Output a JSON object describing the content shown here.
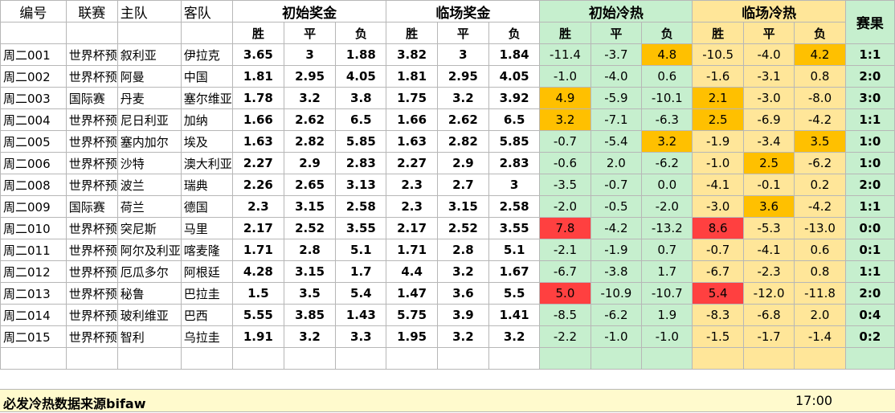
{
  "headers": {
    "id": "编号",
    "league": "联赛",
    "home": "主队",
    "away": "客队",
    "init_odds": "初始奖金",
    "live_odds": "临场奖金",
    "init_heat": "初始冷热",
    "live_heat": "临场冷热",
    "result": "赛果",
    "win": "胜",
    "draw": "平",
    "lose": "负"
  },
  "rows": [
    {
      "id": "周二001",
      "league": "世界杯预",
      "home": "叙利亚",
      "away": "伊拉克",
      "io": [
        "3.65",
        "3",
        "1.88"
      ],
      "lo": [
        "3.82",
        "3",
        "1.84"
      ],
      "ih": [
        "-11.4",
        "-3.7",
        "4.8"
      ],
      "lh": [
        "-10.5",
        "-4.0",
        "4.2"
      ],
      "res": "1:1",
      "ihc": [
        "",
        "",
        "o"
      ],
      "lhc": [
        "",
        "",
        "o"
      ]
    },
    {
      "id": "周二002",
      "league": "世界杯预",
      "home": "阿曼",
      "away": "中国",
      "io": [
        "1.81",
        "2.95",
        "4.05"
      ],
      "lo": [
        "1.81",
        "2.95",
        "4.05"
      ],
      "ih": [
        "-1.0",
        "-4.0",
        "0.6"
      ],
      "lh": [
        "-1.6",
        "-3.1",
        "0.8"
      ],
      "res": "2:0",
      "ihc": [
        "",
        "",
        ""
      ],
      "lhc": [
        "",
        "",
        ""
      ]
    },
    {
      "id": "周二003",
      "league": "国际赛",
      "home": "丹麦",
      "away": "塞尔维亚",
      "io": [
        "1.78",
        "3.2",
        "3.8"
      ],
      "lo": [
        "1.75",
        "3.2",
        "3.92"
      ],
      "ih": [
        "4.9",
        "-5.9",
        "-10.1"
      ],
      "lh": [
        "2.1",
        "-3.0",
        "-8.0"
      ],
      "res": "3:0",
      "ihc": [
        "o",
        "",
        ""
      ],
      "lhc": [
        "o",
        "",
        ""
      ]
    },
    {
      "id": "周二004",
      "league": "世界杯预",
      "home": "尼日利亚",
      "away": "加纳",
      "io": [
        "1.66",
        "2.62",
        "6.5"
      ],
      "lo": [
        "1.66",
        "2.62",
        "6.5"
      ],
      "ih": [
        "3.2",
        "-7.1",
        "-6.3"
      ],
      "lh": [
        "2.5",
        "-6.9",
        "-4.2"
      ],
      "res": "1:1",
      "ihc": [
        "o",
        "",
        ""
      ],
      "lhc": [
        "o",
        "",
        ""
      ]
    },
    {
      "id": "周二005",
      "league": "世界杯预",
      "home": "塞内加尔",
      "away": "埃及",
      "io": [
        "1.63",
        "2.82",
        "5.85"
      ],
      "lo": [
        "1.63",
        "2.82",
        "5.85"
      ],
      "ih": [
        "-0.7",
        "-5.4",
        "3.2"
      ],
      "lh": [
        "-1.9",
        "-3.4",
        "3.5"
      ],
      "res": "1:0",
      "ihc": [
        "",
        "",
        "o"
      ],
      "lhc": [
        "",
        "",
        "o"
      ]
    },
    {
      "id": "周二006",
      "league": "世界杯预",
      "home": "沙特",
      "away": "澳大利亚",
      "io": [
        "2.27",
        "2.9",
        "2.83"
      ],
      "lo": [
        "2.27",
        "2.9",
        "2.83"
      ],
      "ih": [
        "-0.6",
        "2.0",
        "-6.2"
      ],
      "lh": [
        "-1.0",
        "2.5",
        "-6.2"
      ],
      "res": "1:0",
      "ihc": [
        "",
        "",
        ""
      ],
      "lhc": [
        "",
        "o",
        ""
      ]
    },
    {
      "id": "周二008",
      "league": "世界杯预",
      "home": "波兰",
      "away": "瑞典",
      "io": [
        "2.26",
        "2.65",
        "3.13"
      ],
      "lo": [
        "2.3",
        "2.7",
        "3"
      ],
      "ih": [
        "-3.5",
        "-0.7",
        "0.0"
      ],
      "lh": [
        "-4.1",
        "-0.1",
        "0.2"
      ],
      "res": "2:0",
      "ihc": [
        "",
        "",
        ""
      ],
      "lhc": [
        "",
        "",
        ""
      ]
    },
    {
      "id": "周二009",
      "league": "国际赛",
      "home": "荷兰",
      "away": "德国",
      "io": [
        "2.3",
        "3.15",
        "2.58"
      ],
      "lo": [
        "2.3",
        "3.15",
        "2.58"
      ],
      "ih": [
        "-2.0",
        "-0.5",
        "-2.0"
      ],
      "lh": [
        "-3.0",
        "3.6",
        "-4.2"
      ],
      "res": "1:1",
      "ihc": [
        "",
        "",
        ""
      ],
      "lhc": [
        "",
        "o",
        ""
      ]
    },
    {
      "id": "周二010",
      "league": "世界杯预",
      "home": "突尼斯",
      "away": "马里",
      "io": [
        "2.17",
        "2.52",
        "3.55"
      ],
      "lo": [
        "2.17",
        "2.52",
        "3.55"
      ],
      "ih": [
        "7.8",
        "-4.2",
        "-13.2"
      ],
      "lh": [
        "8.6",
        "-5.3",
        "-13.0"
      ],
      "res": "0:0",
      "ihc": [
        "r",
        "",
        ""
      ],
      "lhc": [
        "r",
        "",
        ""
      ]
    },
    {
      "id": "周二011",
      "league": "世界杯预",
      "home": "阿尔及利亚",
      "away": "喀麦隆",
      "io": [
        "1.71",
        "2.8",
        "5.1"
      ],
      "lo": [
        "1.71",
        "2.8",
        "5.1"
      ],
      "ih": [
        "-2.1",
        "-1.9",
        "0.7"
      ],
      "lh": [
        "-0.7",
        "-4.1",
        "0.6"
      ],
      "res": "0:1",
      "ihc": [
        "",
        "",
        ""
      ],
      "lhc": [
        "",
        "",
        ""
      ]
    },
    {
      "id": "周二012",
      "league": "世界杯预",
      "home": "厄瓜多尔",
      "away": "阿根廷",
      "io": [
        "4.28",
        "3.15",
        "1.7"
      ],
      "lo": [
        "4.4",
        "3.2",
        "1.67"
      ],
      "ih": [
        "-6.7",
        "-3.8",
        "1.7"
      ],
      "lh": [
        "-6.7",
        "-2.3",
        "0.8"
      ],
      "res": "1:1",
      "ihc": [
        "",
        "",
        ""
      ],
      "lhc": [
        "",
        "",
        ""
      ]
    },
    {
      "id": "周二013",
      "league": "世界杯预",
      "home": "秘鲁",
      "away": "巴拉圭",
      "io": [
        "1.5",
        "3.5",
        "5.4"
      ],
      "lo": [
        "1.47",
        "3.6",
        "5.5"
      ],
      "ih": [
        "5.0",
        "-10.9",
        "-10.7"
      ],
      "lh": [
        "5.4",
        "-12.0",
        "-11.8"
      ],
      "res": "2:0",
      "ihc": [
        "r",
        "",
        ""
      ],
      "lhc": [
        "r",
        "",
        ""
      ]
    },
    {
      "id": "周二014",
      "league": "世界杯预",
      "home": "玻利维亚",
      "away": "巴西",
      "io": [
        "5.55",
        "3.85",
        "1.43"
      ],
      "lo": [
        "5.75",
        "3.9",
        "1.41"
      ],
      "ih": [
        "-8.5",
        "-6.2",
        "1.9"
      ],
      "lh": [
        "-8.3",
        "-6.8",
        "2.0"
      ],
      "res": "0:4",
      "ihc": [
        "",
        "",
        ""
      ],
      "lhc": [
        "",
        "",
        ""
      ]
    },
    {
      "id": "周二015",
      "league": "世界杯预",
      "home": "智利",
      "away": "乌拉圭",
      "io": [
        "1.91",
        "3.2",
        "3.3"
      ],
      "lo": [
        "1.95",
        "3.2",
        "3.2"
      ],
      "ih": [
        "-2.2",
        "-1.0",
        "-1.0"
      ],
      "lh": [
        "-1.5",
        "-1.7",
        "-1.4"
      ],
      "res": "0:2",
      "ihc": [
        "",
        "",
        ""
      ],
      "lhc": [
        "",
        "",
        ""
      ]
    }
  ],
  "footer": {
    "source": "必发冷热数据来源bifaw",
    "time": "17:00"
  },
  "colors": {
    "init_heat_bg": "#c6efce",
    "live_heat_bg": "#ffe699",
    "hot_red": "#ff4040",
    "warm_orange": "#ffc000"
  }
}
